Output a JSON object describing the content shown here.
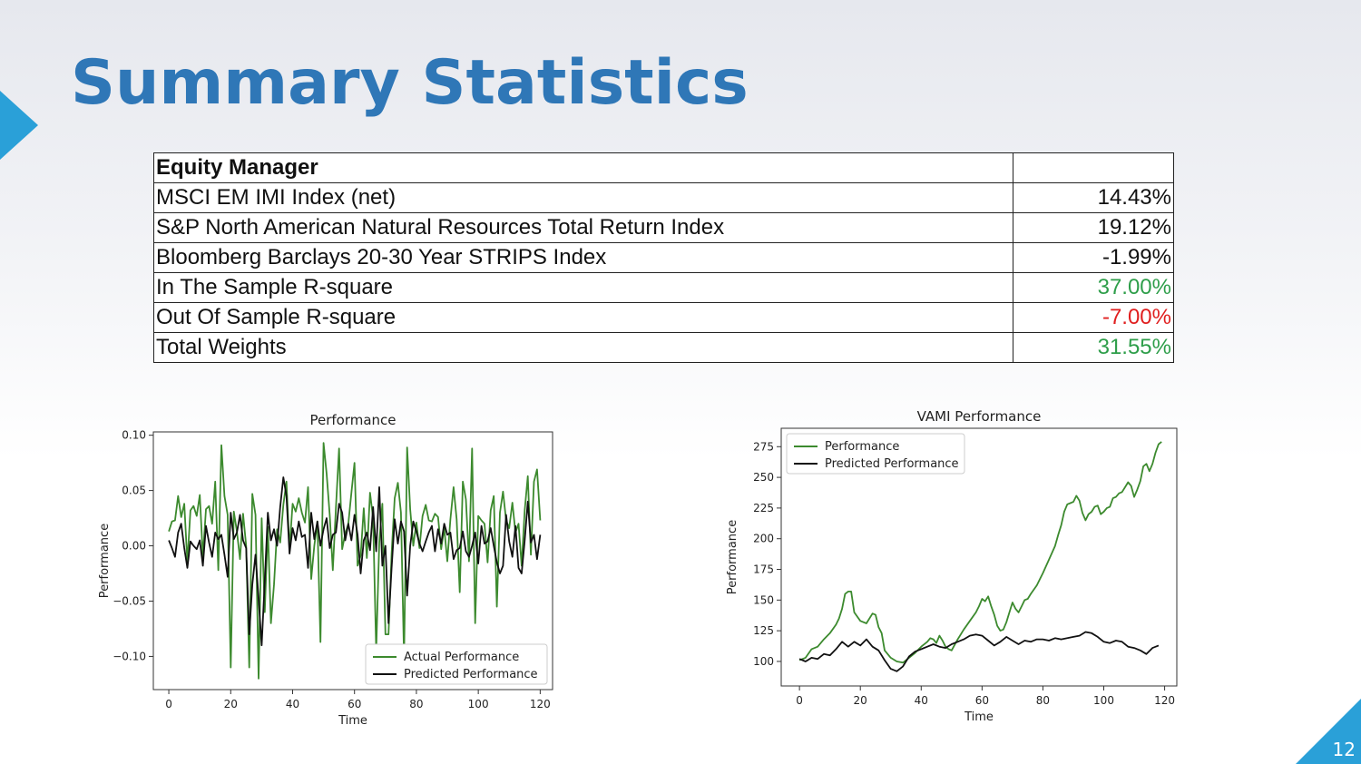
{
  "slide": {
    "title": "Summary Statistics",
    "page_number": "12"
  },
  "table": {
    "header": "Equity Manager",
    "rows": [
      {
        "label": "MSCI EM IMI Index (net)",
        "value": "14.43%",
        "color": "#111111"
      },
      {
        "label": "S&P North American Natural Resources Total Return Index",
        "value": "19.12%",
        "color": "#111111"
      },
      {
        "label": "Bloomberg Barclays 20-30 Year STRIPS Index",
        "value": "-1.99%",
        "color": "#111111"
      },
      {
        "label": "In The Sample R-square",
        "value": "37.00%",
        "color": "#2e9e4a"
      },
      {
        "label": "Out Of Sample R-square",
        "value": "-7.00%",
        "color": "#e01f1f"
      },
      {
        "label": "Total Weights",
        "value": "31.55%",
        "color": "#2e9e4a"
      }
    ]
  },
  "chart_data": [
    {
      "type": "line",
      "title": "Performance",
      "xlabel": "Time",
      "ylabel": "Performance",
      "xlim": [
        -5,
        124
      ],
      "ylim": [
        -0.13,
        0.103
      ],
      "xticks": [
        0,
        20,
        40,
        60,
        80,
        100,
        120
      ],
      "yticks": [
        -0.1,
        -0.05,
        0.0,
        0.05,
        0.1
      ],
      "ytick_labels": [
        "−0.10",
        "−0.05",
        "0.00",
        "0.05",
        "0.10"
      ],
      "legend_position": "lower-right",
      "series": [
        {
          "name": "Actual Performance",
          "color": "#3c8a2e",
          "values": [
            0.013,
            0.022,
            0.023,
            0.045,
            0.026,
            0.038,
            -0.015,
            0.032,
            0.036,
            0.027,
            0.046,
            -0.01,
            0.033,
            0.036,
            0.02,
            0.058,
            -0.022,
            0.091,
            0.045,
            0.028,
            -0.11,
            0.031,
            0.013,
            -0.012,
            0.029,
            0.0,
            -0.11,
            0.047,
            0.028,
            -0.12,
            0.025,
            -0.06,
            0.017,
            -0.07,
            -0.035,
            0.015,
            0.003,
            0.037,
            0.058,
            -0.003,
            0.038,
            0.031,
            0.043,
            0.03,
            0.021,
            0.053,
            -0.03,
            0.0,
            0.022,
            -0.087,
            0.093,
            0.065,
            0.028,
            -0.022,
            0.034,
            0.088,
            -0.003,
            0.011,
            0.02,
            0.048,
            0.075,
            -0.018,
            -0.009,
            0.034,
            -0.011,
            0.048,
            0.025,
            -0.095,
            0.003,
            0.038,
            -0.08,
            -0.08,
            -0.007,
            0.043,
            0.057,
            0.03,
            -0.102,
            0.089,
            0.033,
            0.0,
            0.021,
            -0.002,
            0.027,
            0.037,
            0.023,
            0.022,
            0.029,
            0.026,
            -0.003,
            0.016,
            -0.014,
            0.024,
            0.053,
            0.024,
            -0.042,
            0.058,
            0.042,
            -0.014,
            0.088,
            -0.07,
            0.027,
            0.023,
            0.02,
            -0.015,
            0.032,
            0.045,
            -0.055,
            0.03,
            0.049,
            0.023,
            0.016,
            0.039,
            0.012,
            0.02,
            -0.018,
            0.032,
            0.063,
            -0.008,
            0.058,
            0.069,
            0.023
          ],
          "note": "x = 0..119"
        },
        {
          "name": "Predicted Performance",
          "color": "#111111",
          "values": [
            0.005,
            -0.002,
            -0.01,
            0.012,
            0.02,
            -0.002,
            -0.02,
            0.004,
            0.0,
            -0.003,
            0.005,
            -0.018,
            0.018,
            0.003,
            -0.01,
            0.012,
            0.006,
            0.01,
            -0.008,
            -0.028,
            0.03,
            0.006,
            0.012,
            0.028,
            0.005,
            -0.002,
            -0.08,
            -0.035,
            -0.008,
            -0.048,
            -0.09,
            -0.032,
            0.03,
            0.005,
            0.015,
            0.0,
            0.035,
            0.062,
            0.045,
            -0.007,
            0.016,
            0.005,
            0.022,
            0.008,
            0.01,
            -0.02,
            0.03,
            0.006,
            0.022,
            0.0,
            0.015,
            0.025,
            -0.002,
            0.01,
            0.012,
            0.038,
            0.03,
            0.005,
            0.02,
            0.005,
            0.028,
            0.01,
            -0.025,
            0.005,
            0.012,
            -0.004,
            0.035,
            -0.005,
            0.053,
            -0.018,
            0.0,
            -0.07,
            -0.02,
            0.024,
            0.002,
            0.022,
            0.013,
            -0.045,
            0.0,
            0.022,
            0.013,
            0.002,
            -0.005,
            0.004,
            0.012,
            0.018,
            -0.005,
            0.015,
            0.002,
            0.02,
            0.01,
            0.012,
            -0.012,
            -0.004,
            -0.002,
            0.013,
            -0.005,
            -0.01,
            0.0,
            0.012,
            -0.016,
            0.018,
            0.002,
            0.004,
            0.016,
            0.0,
            -0.015,
            -0.025,
            -0.018,
            0.028,
            0.004,
            -0.01,
            0.018,
            -0.02,
            -0.025,
            0.005,
            0.04,
            0.003,
            0.01,
            -0.012,
            0.01
          ]
        }
      ]
    },
    {
      "type": "line",
      "title": "VAMI Performance",
      "xlabel": "Time",
      "ylabel": "Performance",
      "xlim": [
        -6,
        124
      ],
      "ylim": [
        80,
        290
      ],
      "xticks": [
        0,
        20,
        40,
        60,
        80,
        100,
        120
      ],
      "yticks": [
        100,
        125,
        150,
        175,
        200,
        225,
        250,
        275
      ],
      "legend_position": "upper-left",
      "series": [
        {
          "name": "Performance",
          "color": "#3c8a2e",
          "points": [
            [
              0,
              101
            ],
            [
              2,
              103
            ],
            [
              4,
              110
            ],
            [
              6,
              112
            ],
            [
              8,
              118
            ],
            [
              10,
              123
            ],
            [
              12,
              130
            ],
            [
              13,
              135
            ],
            [
              14,
              143
            ],
            [
              15,
              155
            ],
            [
              16,
              157
            ],
            [
              17,
              157
            ],
            [
              18,
              140
            ],
            [
              20,
              133
            ],
            [
              22,
              131
            ],
            [
              24,
              139
            ],
            [
              25,
              138
            ],
            [
              26,
              128
            ],
            [
              27,
              123
            ],
            [
              28,
              109
            ],
            [
              30,
              103
            ],
            [
              32,
              100
            ],
            [
              34,
              99
            ],
            [
              36,
              103
            ],
            [
              38,
              107
            ],
            [
              40,
              112
            ],
            [
              42,
              116
            ],
            [
              43,
              119
            ],
            [
              44,
              118
            ],
            [
              45,
              115
            ],
            [
              46,
              121
            ],
            [
              47,
              117
            ],
            [
              48,
              112
            ],
            [
              49,
              110
            ],
            [
              50,
              109
            ],
            [
              52,
              118
            ],
            [
              54,
              126
            ],
            [
              56,
              133
            ],
            [
              58,
              140
            ],
            [
              59,
              145
            ],
            [
              60,
              151
            ],
            [
              61,
              149
            ],
            [
              62,
              153
            ],
            [
              63,
              145
            ],
            [
              64,
              138
            ],
            [
              65,
              129
            ],
            [
              66,
              125
            ],
            [
              67,
              126
            ],
            [
              68,
              132
            ],
            [
              69,
              140
            ],
            [
              70,
              148
            ],
            [
              71,
              143
            ],
            [
              72,
              140
            ],
            [
              73,
              145
            ],
            [
              74,
              150
            ],
            [
              75,
              151
            ],
            [
              76,
              155
            ],
            [
              78,
              162
            ],
            [
              80,
              172
            ],
            [
              82,
              183
            ],
            [
              84,
              194
            ],
            [
              85,
              203
            ],
            [
              86,
              211
            ],
            [
              87,
              222
            ],
            [
              88,
              228
            ],
            [
              89,
              229
            ],
            [
              90,
              230
            ],
            [
              91,
              235
            ],
            [
              92,
              231
            ],
            [
              93,
              221
            ],
            [
              94,
              215
            ],
            [
              95,
              220
            ],
            [
              96,
              222
            ],
            [
              97,
              226
            ],
            [
              98,
              227
            ],
            [
              99,
              220
            ],
            [
              100,
              222
            ],
            [
              101,
              225
            ],
            [
              102,
              226
            ],
            [
              103,
              233
            ],
            [
              104,
              234
            ],
            [
              105,
              237
            ],
            [
              106,
              238
            ],
            [
              107,
              242
            ],
            [
              108,
              246
            ],
            [
              109,
              243
            ],
            [
              110,
              234
            ],
            [
              111,
              240
            ],
            [
              112,
              247
            ],
            [
              113,
              259
            ],
            [
              114,
              261
            ],
            [
              115,
              255
            ],
            [
              116,
              261
            ],
            [
              117,
              270
            ],
            [
              118,
              277
            ],
            [
              119,
              279
            ]
          ]
        },
        {
          "name": "Predicted Performance",
          "color": "#111111",
          "points": [
            [
              0,
              102
            ],
            [
              2,
              100
            ],
            [
              4,
              103
            ],
            [
              6,
              102
            ],
            [
              8,
              106
            ],
            [
              10,
              105
            ],
            [
              12,
              110
            ],
            [
              14,
              116
            ],
            [
              16,
              112
            ],
            [
              18,
              116
            ],
            [
              20,
              113
            ],
            [
              22,
              118
            ],
            [
              24,
              112
            ],
            [
              26,
              109
            ],
            [
              28,
              101
            ],
            [
              30,
              94
            ],
            [
              32,
              92
            ],
            [
              34,
              96
            ],
            [
              36,
              104
            ],
            [
              38,
              108
            ],
            [
              40,
              110
            ],
            [
              42,
              112
            ],
            [
              44,
              114
            ],
            [
              46,
              112
            ],
            [
              48,
              111
            ],
            [
              50,
              114
            ],
            [
              52,
              116
            ],
            [
              54,
              118
            ],
            [
              56,
              121
            ],
            [
              58,
              122
            ],
            [
              60,
              121
            ],
            [
              62,
              117
            ],
            [
              64,
              113
            ],
            [
              66,
              116
            ],
            [
              68,
              120
            ],
            [
              70,
              117
            ],
            [
              72,
              114
            ],
            [
              74,
              117
            ],
            [
              76,
              116
            ],
            [
              78,
              118
            ],
            [
              80,
              118
            ],
            [
              82,
              117
            ],
            [
              84,
              119
            ],
            [
              86,
              118
            ],
            [
              88,
              119
            ],
            [
              90,
              120
            ],
            [
              92,
              121
            ],
            [
              94,
              124
            ],
            [
              96,
              123
            ],
            [
              98,
              120
            ],
            [
              100,
              116
            ],
            [
              102,
              115
            ],
            [
              104,
              117
            ],
            [
              106,
              116
            ],
            [
              108,
              112
            ],
            [
              110,
              111
            ],
            [
              112,
              109
            ],
            [
              114,
              106
            ],
            [
              116,
              111
            ],
            [
              118,
              113
            ]
          ]
        }
      ]
    }
  ]
}
